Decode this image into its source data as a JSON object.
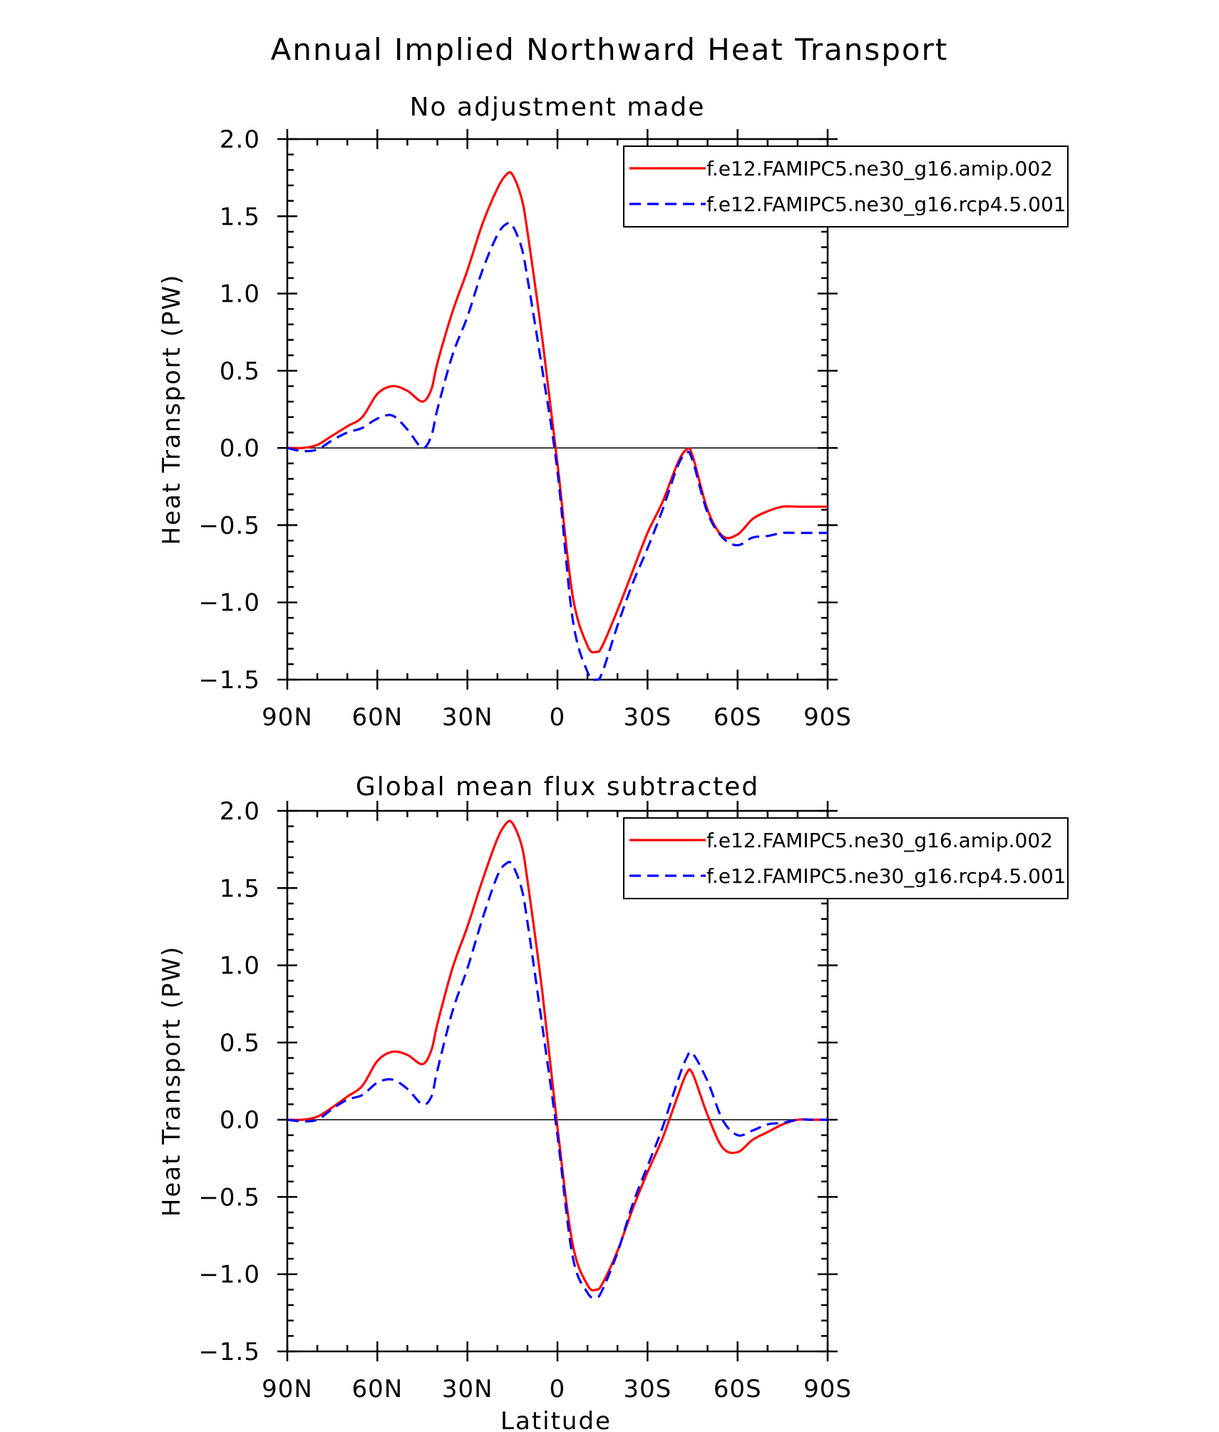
{
  "figure": {
    "title": "Annual Implied Northward Heat Transport",
    "xlabel": "Latitude"
  },
  "chart_data": [
    {
      "type": "line",
      "title": "No adjustment made",
      "xlabel": "",
      "ylabel": "Heat Transport (PW)",
      "xlim": [
        90,
        -90
      ],
      "ylim": [
        -1.5,
        2.0
      ],
      "x_ticks": [
        90,
        60,
        30,
        0,
        -30,
        -60,
        -90
      ],
      "x_tick_labels": [
        "90N",
        "60N",
        "30N",
        "0",
        "30S",
        "60S",
        "90S"
      ],
      "y_ticks": [
        -1.5,
        -1.0,
        -0.5,
        0.0,
        0.5,
        1.0,
        1.5,
        2.0
      ],
      "y_tick_labels": [
        "−1.5",
        "−1.0",
        "−0.5",
        "0.0",
        "0.5",
        "1.0",
        "1.5",
        "2.0"
      ],
      "zero_line": true,
      "grid": false,
      "legend_position": "top-right",
      "series": [
        {
          "name": "f.e12.FAMIPC5.ne30_g16.amip.002",
          "color": "#ff0000",
          "dash": "solid",
          "x": [
            90,
            85,
            80,
            75,
            70,
            65,
            60,
            55,
            50,
            45,
            42,
            40,
            35,
            30,
            25,
            20,
            17,
            15,
            12,
            10,
            5,
            0,
            -5,
            -10,
            -13,
            -15,
            -20,
            -25,
            -30,
            -35,
            -40,
            -43,
            -45,
            -50,
            -55,
            -60,
            -65,
            -70,
            -75,
            -80,
            -85,
            -90
          ],
          "y": [
            0.0,
            0.0,
            0.02,
            0.08,
            0.14,
            0.2,
            0.35,
            0.4,
            0.37,
            0.3,
            0.38,
            0.55,
            0.88,
            1.15,
            1.45,
            1.68,
            1.77,
            1.77,
            1.62,
            1.4,
            0.7,
            -0.1,
            -0.95,
            -1.28,
            -1.32,
            -1.28,
            -1.05,
            -0.8,
            -0.55,
            -0.35,
            -0.1,
            -0.01,
            -0.05,
            -0.4,
            -0.57,
            -0.56,
            -0.46,
            -0.41,
            -0.38,
            -0.38,
            -0.38,
            -0.38
          ]
        },
        {
          "name": "f.e12.FAMIPC5.ne30_g16.rcp4.5.001",
          "color": "#0000ff",
          "dash": "dashed",
          "x": [
            90,
            85,
            80,
            75,
            70,
            65,
            60,
            55,
            50,
            45,
            42,
            40,
            35,
            30,
            25,
            20,
            17,
            15,
            12,
            10,
            5,
            0,
            -5,
            -10,
            -13,
            -15,
            -20,
            -25,
            -30,
            -35,
            -40,
            -43,
            -45,
            -50,
            -55,
            -60,
            -65,
            -70,
            -75,
            -80,
            -85,
            -90
          ],
          "y": [
            0.0,
            -0.02,
            -0.01,
            0.05,
            0.1,
            0.13,
            0.19,
            0.21,
            0.12,
            0.0,
            0.08,
            0.25,
            0.6,
            0.85,
            1.15,
            1.38,
            1.45,
            1.44,
            1.3,
            1.1,
            0.5,
            -0.15,
            -1.1,
            -1.45,
            -1.5,
            -1.45,
            -1.15,
            -0.88,
            -0.65,
            -0.4,
            -0.12,
            -0.03,
            -0.08,
            -0.42,
            -0.58,
            -0.63,
            -0.58,
            -0.57,
            -0.55,
            -0.55,
            -0.55,
            -0.55
          ]
        }
      ]
    },
    {
      "type": "line",
      "title": "Global mean flux subtracted",
      "xlabel": "Latitude",
      "ylabel": "Heat Transport (PW)",
      "xlim": [
        90,
        -90
      ],
      "ylim": [
        -1.5,
        2.0
      ],
      "x_ticks": [
        90,
        60,
        30,
        0,
        -30,
        -60,
        -90
      ],
      "x_tick_labels": [
        "90N",
        "60N",
        "30N",
        "0",
        "30S",
        "60S",
        "90S"
      ],
      "y_ticks": [
        -1.5,
        -1.0,
        -0.5,
        0.0,
        0.5,
        1.0,
        1.5,
        2.0
      ],
      "y_tick_labels": [
        "−1.5",
        "−1.0",
        "−0.5",
        "0.0",
        "0.5",
        "1.0",
        "1.5",
        "2.0"
      ],
      "zero_line": true,
      "grid": false,
      "legend_position": "top-right",
      "series": [
        {
          "name": "f.e12.FAMIPC5.ne30_g16.amip.002",
          "color": "#ff0000",
          "dash": "solid",
          "x": [
            90,
            85,
            80,
            75,
            70,
            65,
            60,
            55,
            50,
            45,
            42,
            40,
            35,
            30,
            25,
            20,
            17,
            15,
            12,
            10,
            5,
            0,
            -5,
            -10,
            -13,
            -15,
            -20,
            -25,
            -30,
            -35,
            -40,
            -43,
            -45,
            -50,
            -55,
            -60,
            -65,
            -70,
            -75,
            -80,
            -85,
            -90
          ],
          "y": [
            0.0,
            0.0,
            0.02,
            0.08,
            0.15,
            0.22,
            0.38,
            0.44,
            0.42,
            0.36,
            0.45,
            0.62,
            0.98,
            1.25,
            1.55,
            1.82,
            1.92,
            1.92,
            1.78,
            1.55,
            0.82,
            -0.05,
            -0.8,
            -1.07,
            -1.1,
            -1.06,
            -0.85,
            -0.58,
            -0.34,
            -0.12,
            0.15,
            0.3,
            0.3,
            0.03,
            -0.18,
            -0.21,
            -0.13,
            -0.08,
            -0.03,
            0.0,
            0.0,
            0.0
          ]
        },
        {
          "name": "f.e12.FAMIPC5.ne30_g16.rcp4.5.001",
          "color": "#0000ff",
          "dash": "dashed",
          "x": [
            90,
            85,
            80,
            75,
            70,
            65,
            60,
            55,
            50,
            45,
            42,
            40,
            35,
            30,
            25,
            20,
            17,
            15,
            12,
            10,
            5,
            0,
            -5,
            -10,
            -13,
            -15,
            -20,
            -25,
            -30,
            -35,
            -40,
            -43,
            -45,
            -50,
            -55,
            -60,
            -65,
            -70,
            -75,
            -80,
            -85,
            -90
          ],
          "y": [
            0.0,
            -0.01,
            0.0,
            0.07,
            0.13,
            0.16,
            0.24,
            0.26,
            0.2,
            0.1,
            0.15,
            0.32,
            0.7,
            0.98,
            1.3,
            1.58,
            1.66,
            1.65,
            1.5,
            1.28,
            0.6,
            -0.1,
            -0.88,
            -1.12,
            -1.15,
            -1.1,
            -0.86,
            -0.55,
            -0.3,
            -0.05,
            0.25,
            0.4,
            0.43,
            0.25,
            0.0,
            -0.1,
            -0.07,
            -0.03,
            -0.02,
            0.0,
            0.0,
            0.0
          ]
        }
      ]
    }
  ]
}
